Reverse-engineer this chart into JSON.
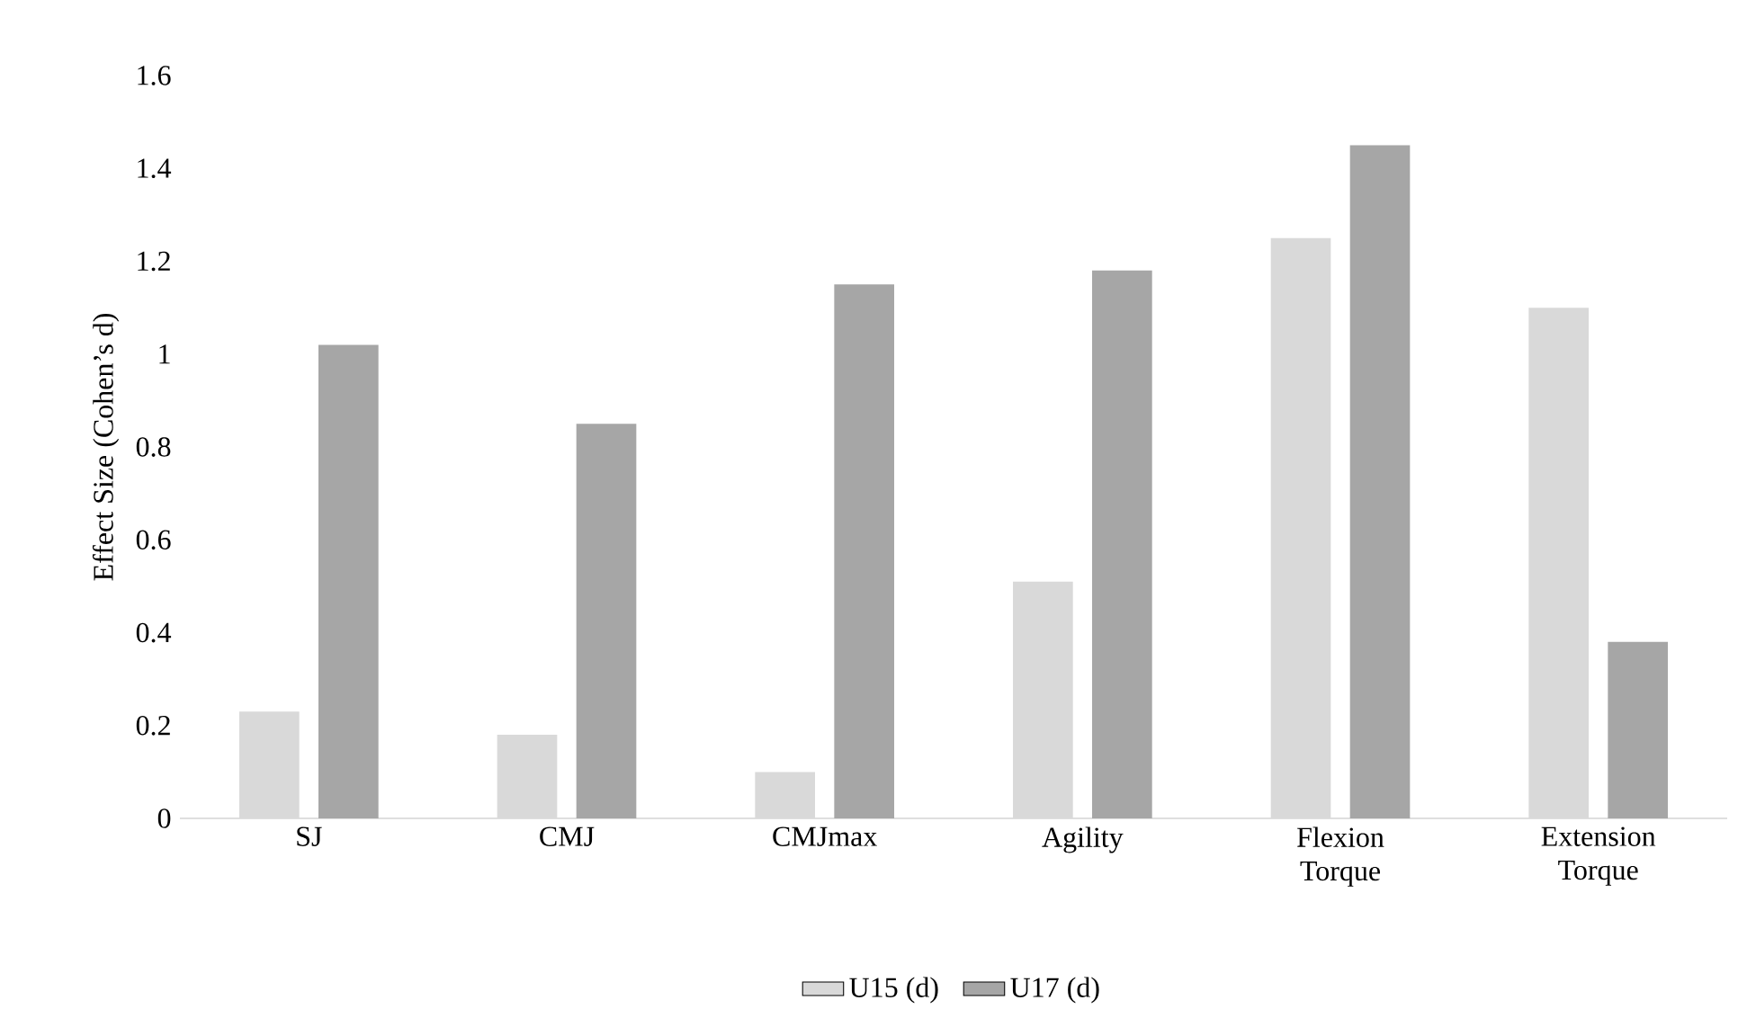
{
  "chart_data": {
    "type": "bar",
    "ylabel": "Effect Size (Cohen’s d)",
    "categories": [
      "SJ",
      "CMJ",
      "CMJmax",
      "Agility",
      "Flexion Torque",
      "Extension Torque"
    ],
    "series": [
      {
        "name": "U15 (d)",
        "color": "#d9d9d9",
        "values": [
          0.23,
          0.18,
          0.1,
          0.51,
          1.25,
          1.1
        ]
      },
      {
        "name": "U17 (d)",
        "color": "#a6a6a6",
        "values": [
          1.02,
          0.85,
          1.15,
          1.18,
          1.45,
          0.38
        ]
      }
    ],
    "ylim": [
      0,
      1.6
    ],
    "yticks": [
      0,
      0.2,
      0.4,
      0.6,
      0.8,
      1,
      1.2,
      1.4,
      1.6
    ],
    "legend": "bottom"
  }
}
